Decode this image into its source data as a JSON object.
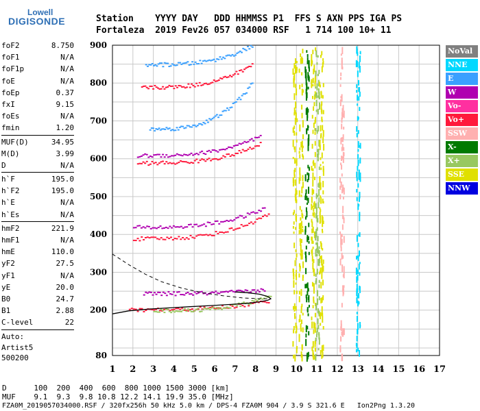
{
  "logo": {
    "top": "Lowell",
    "main": "DIGISONDE"
  },
  "header": {
    "line1": "Station    YYYY DAY   DDD HHMMSS P1  FFS S AXN PPS IGA PS",
    "line2": "Fortaleza  2019 Fev26 057 034000 RSF   1 714 100 10+ 11"
  },
  "params": [
    {
      "k": "foF2",
      "v": "8.750"
    },
    {
      "k": "foF1",
      "v": "N/A"
    },
    {
      "k": "foF1p",
      "v": "N/A"
    },
    {
      "k": "foE",
      "v": "N/A"
    },
    {
      "k": "foEp",
      "v": "0.37"
    },
    {
      "k": "fxI",
      "v": "9.15"
    },
    {
      "k": "foEs",
      "v": "N/A"
    },
    {
      "k": "fmin",
      "v": "1.20"
    },
    {
      "k": "MUF(D)",
      "v": "34.95"
    },
    {
      "k": "M(D)",
      "v": "3.99"
    },
    {
      "k": "D",
      "v": "N/A"
    },
    {
      "k": "h`F",
      "v": "195.0"
    },
    {
      "k": "h`F2",
      "v": "195.0"
    },
    {
      "k": "h`E",
      "v": "N/A"
    },
    {
      "k": "h`Es",
      "v": "N/A"
    },
    {
      "k": "hmF2",
      "v": "221.9"
    },
    {
      "k": "hmF1",
      "v": "N/A"
    },
    {
      "k": "hmE",
      "v": "110.0"
    },
    {
      "k": "yF2",
      "v": "27.5"
    },
    {
      "k": "yF1",
      "v": "N/A"
    },
    {
      "k": "yE",
      "v": "20.0"
    },
    {
      "k": "B0",
      "v": "24.7"
    },
    {
      "k": "B1",
      "v": "2.88"
    },
    {
      "k": "C-level",
      "v": "22"
    }
  ],
  "auto": {
    "line1": "Auto:",
    "line2": "Artist5",
    "line3": "500200"
  },
  "legend": [
    {
      "label": "NoVal",
      "color": "#808080"
    },
    {
      "label": "NNE",
      "color": "#00d8ff"
    },
    {
      "label": "E",
      "color": "#3aa0ff"
    },
    {
      "label": "W",
      "color": "#b000b0"
    },
    {
      "label": "Vo-",
      "color": "#ff30a0"
    },
    {
      "label": "Vo+",
      "color": "#ff1a3c"
    },
    {
      "label": "SSW",
      "color": "#ffb0b0"
    },
    {
      "label": "X-",
      "color": "#007a00"
    },
    {
      "label": "X+",
      "color": "#98c860"
    },
    {
      "label": "SSE",
      "color": "#e0e000"
    },
    {
      "label": "NNW",
      "color": "#0000e0"
    }
  ],
  "footer": {
    "line1": "D      100  200  400  600  800 1000 1500 3000 [km]",
    "line2": "MUF    9.1  9.3  9.8 10.8 12.2 14.1 19.9 35.0 [MHz]",
    "line3": "FZA0M_2019057034000.RSF / 320fx256h 50 kHz 5.0 km / DPS-4 FZA0M 904 / 3.9 S 321.6 E   Ion2Png 1.3.20"
  },
  "chart_data": {
    "type": "scatter",
    "xlim": [
      1,
      17
    ],
    "ylim": [
      80,
      900
    ],
    "x_ticks": [
      1,
      2,
      3,
      4,
      5,
      6,
      7,
      8,
      9,
      10,
      11,
      12,
      13,
      14,
      15,
      16,
      17
    ],
    "y_ticks": [
      80,
      200,
      300,
      400,
      500,
      600,
      700,
      800,
      900
    ],
    "grid": true,
    "profile_solid": {
      "x": [
        1.0,
        1.8,
        2.8,
        3.8,
        4.8,
        5.8,
        6.8,
        7.6,
        8.2,
        8.6,
        8.75,
        8.6,
        8.2,
        7.6,
        7.0
      ],
      "y": [
        190,
        198,
        203,
        206,
        209,
        212,
        215,
        218,
        222,
        226,
        230,
        236,
        242,
        246,
        248
      ]
    },
    "profile_dashed": {
      "x": [
        1.0,
        1.8,
        2.6,
        3.4,
        4.4,
        5.4,
        6.4,
        7.4,
        8.2,
        8.6
      ],
      "y": [
        348,
        320,
        295,
        275,
        258,
        246,
        238,
        232,
        230,
        230
      ]
    },
    "traces": [
      {
        "name": "Vo+",
        "color": "#ff1a3c",
        "x0": 1.8,
        "x1": 8.6,
        "y0": 202,
        "y1": 226
      },
      {
        "name": "X+",
        "color": "#98c860",
        "x0": 3.0,
        "x1": 8.7,
        "y0": 200,
        "y1": 240
      },
      {
        "name": "Vo+",
        "color": "#ff1a3c",
        "x0": 2.0,
        "x1": 8.6,
        "y0": 390,
        "y1": 455
      },
      {
        "name": "W",
        "color": "#b000b0",
        "x0": 2.0,
        "x1": 8.4,
        "y0": 420,
        "y1": 470
      },
      {
        "name": "Vo+",
        "color": "#ff1a3c",
        "x0": 2.2,
        "x1": 8.2,
        "y0": 590,
        "y1": 640
      },
      {
        "name": "W",
        "color": "#b000b0",
        "x0": 2.2,
        "x1": 8.2,
        "y0": 610,
        "y1": 660
      },
      {
        "name": "Vo+",
        "color": "#ff1a3c",
        "x0": 2.4,
        "x1": 7.8,
        "y0": 790,
        "y1": 850
      },
      {
        "name": "E",
        "color": "#3aa0ff",
        "x0": 2.8,
        "x1": 7.8,
        "y0": 680,
        "y1": 800
      },
      {
        "name": "E",
        "color": "#3aa0ff",
        "x0": 2.6,
        "x1": 7.8,
        "y0": 850,
        "y1": 900
      },
      {
        "name": "W",
        "color": "#b000b0",
        "x0": 2.5,
        "x1": 8.4,
        "y0": 245,
        "y1": 255
      }
    ],
    "vertical_bands": [
      {
        "name": "SSE",
        "color": "#e0e000",
        "x": 9.9
      },
      {
        "name": "SSE",
        "color": "#e0e000",
        "x": 10.2
      },
      {
        "name": "X-",
        "color": "#007a00",
        "x": 10.5
      },
      {
        "name": "SSE",
        "color": "#e0e000",
        "x": 10.8
      },
      {
        "name": "X+",
        "color": "#98c860",
        "x": 11.0
      },
      {
        "name": "SSE",
        "color": "#e0e000",
        "x": 11.2
      },
      {
        "name": "SSW",
        "color": "#ffb0b0",
        "x": 12.2
      },
      {
        "name": "NNE",
        "color": "#00d8ff",
        "x": 13.0
      }
    ]
  }
}
